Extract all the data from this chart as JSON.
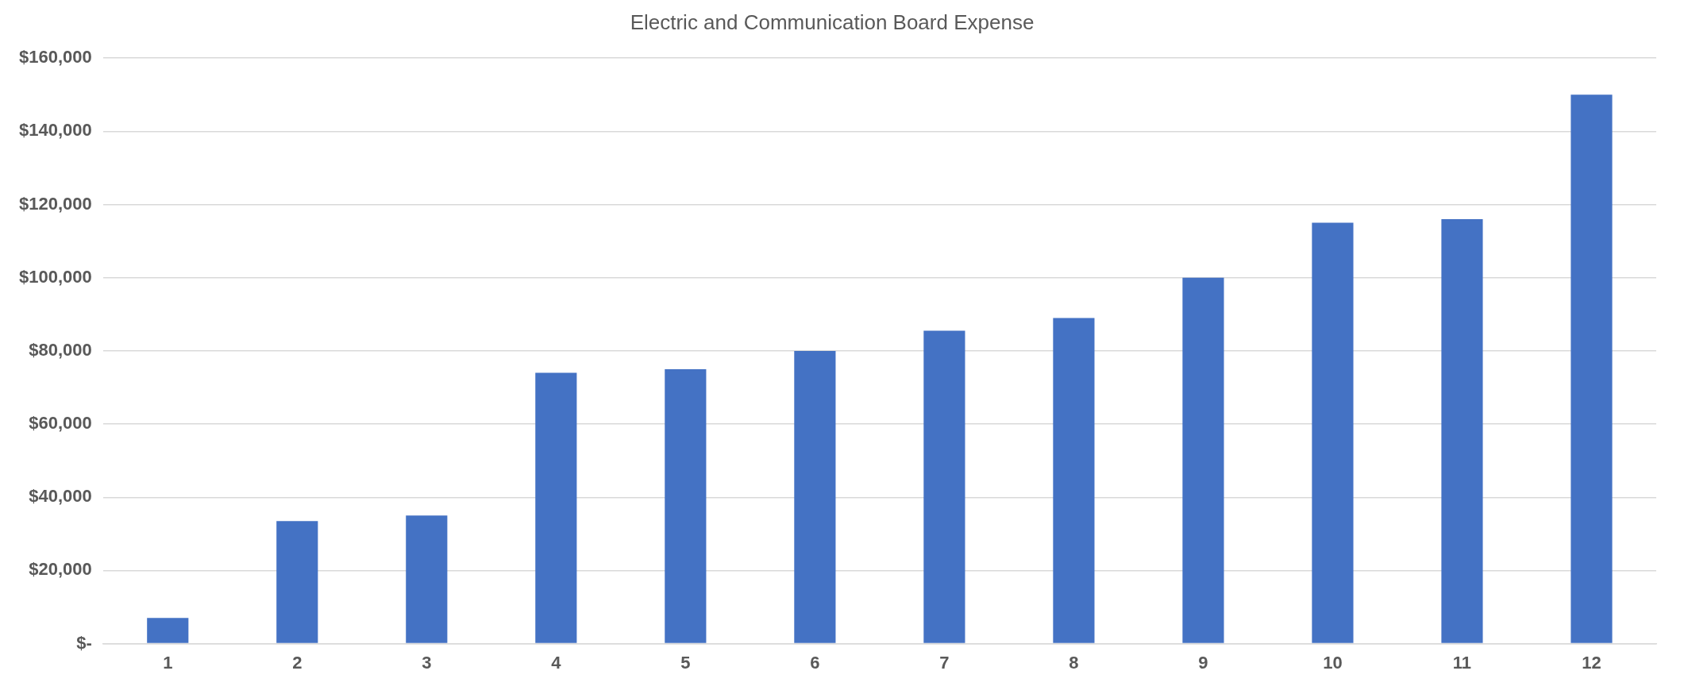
{
  "chart_data": {
    "type": "bar",
    "title": "Electric and Communication Board Expense",
    "categories": [
      "1",
      "2",
      "3",
      "4",
      "5",
      "6",
      "7",
      "8",
      "9",
      "10",
      "11",
      "12"
    ],
    "values": [
      7000,
      33500,
      35000,
      74000,
      75000,
      80000,
      85500,
      89000,
      100000,
      115000,
      116000,
      150000
    ],
    "color": "#4472c4",
    "ylim": [
      0,
      160000
    ],
    "yticks": [
      {
        "value": 0,
        "label": "$-"
      },
      {
        "value": 20000,
        "label": "$20,000"
      },
      {
        "value": 40000,
        "label": "$40,000"
      },
      {
        "value": 60000,
        "label": "$60,000"
      },
      {
        "value": 80000,
        "label": "$80,000"
      },
      {
        "value": 100000,
        "label": "$100,000"
      },
      {
        "value": 120000,
        "label": "$120,000"
      },
      {
        "value": 140000,
        "label": "$140,000"
      },
      {
        "value": 160000,
        "label": "$160,000"
      }
    ],
    "grid": "y",
    "legend": false
  }
}
